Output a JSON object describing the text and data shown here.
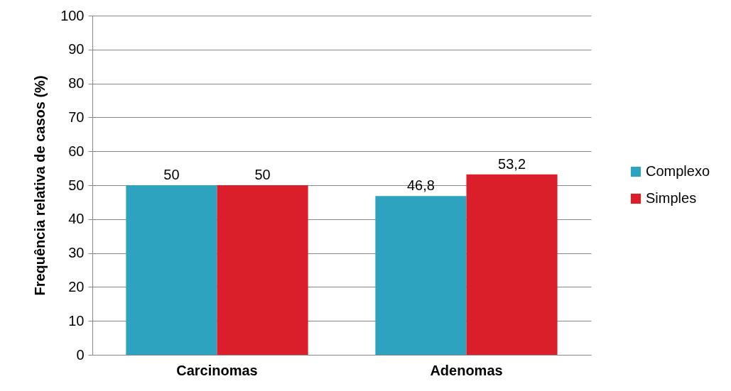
{
  "chart_data": {
    "type": "bar",
    "ylabel": "Frequência relativa de casos (%)",
    "categories": [
      "Carcinomas",
      "Adenomas"
    ],
    "series": [
      {
        "name": "Complexo",
        "color": "#2ea3c0",
        "values": [
          50,
          46.8
        ],
        "value_labels": [
          "50",
          "46,8"
        ]
      },
      {
        "name": "Simples",
        "color": "#da1f2a",
        "values": [
          50,
          53.2
        ],
        "value_labels": [
          "50",
          "53,2"
        ]
      }
    ],
    "ylim": [
      0,
      100
    ],
    "yticks": [
      0,
      10,
      20,
      30,
      40,
      50,
      60,
      70,
      80,
      90,
      100
    ],
    "grid": "y",
    "legend": "right"
  }
}
